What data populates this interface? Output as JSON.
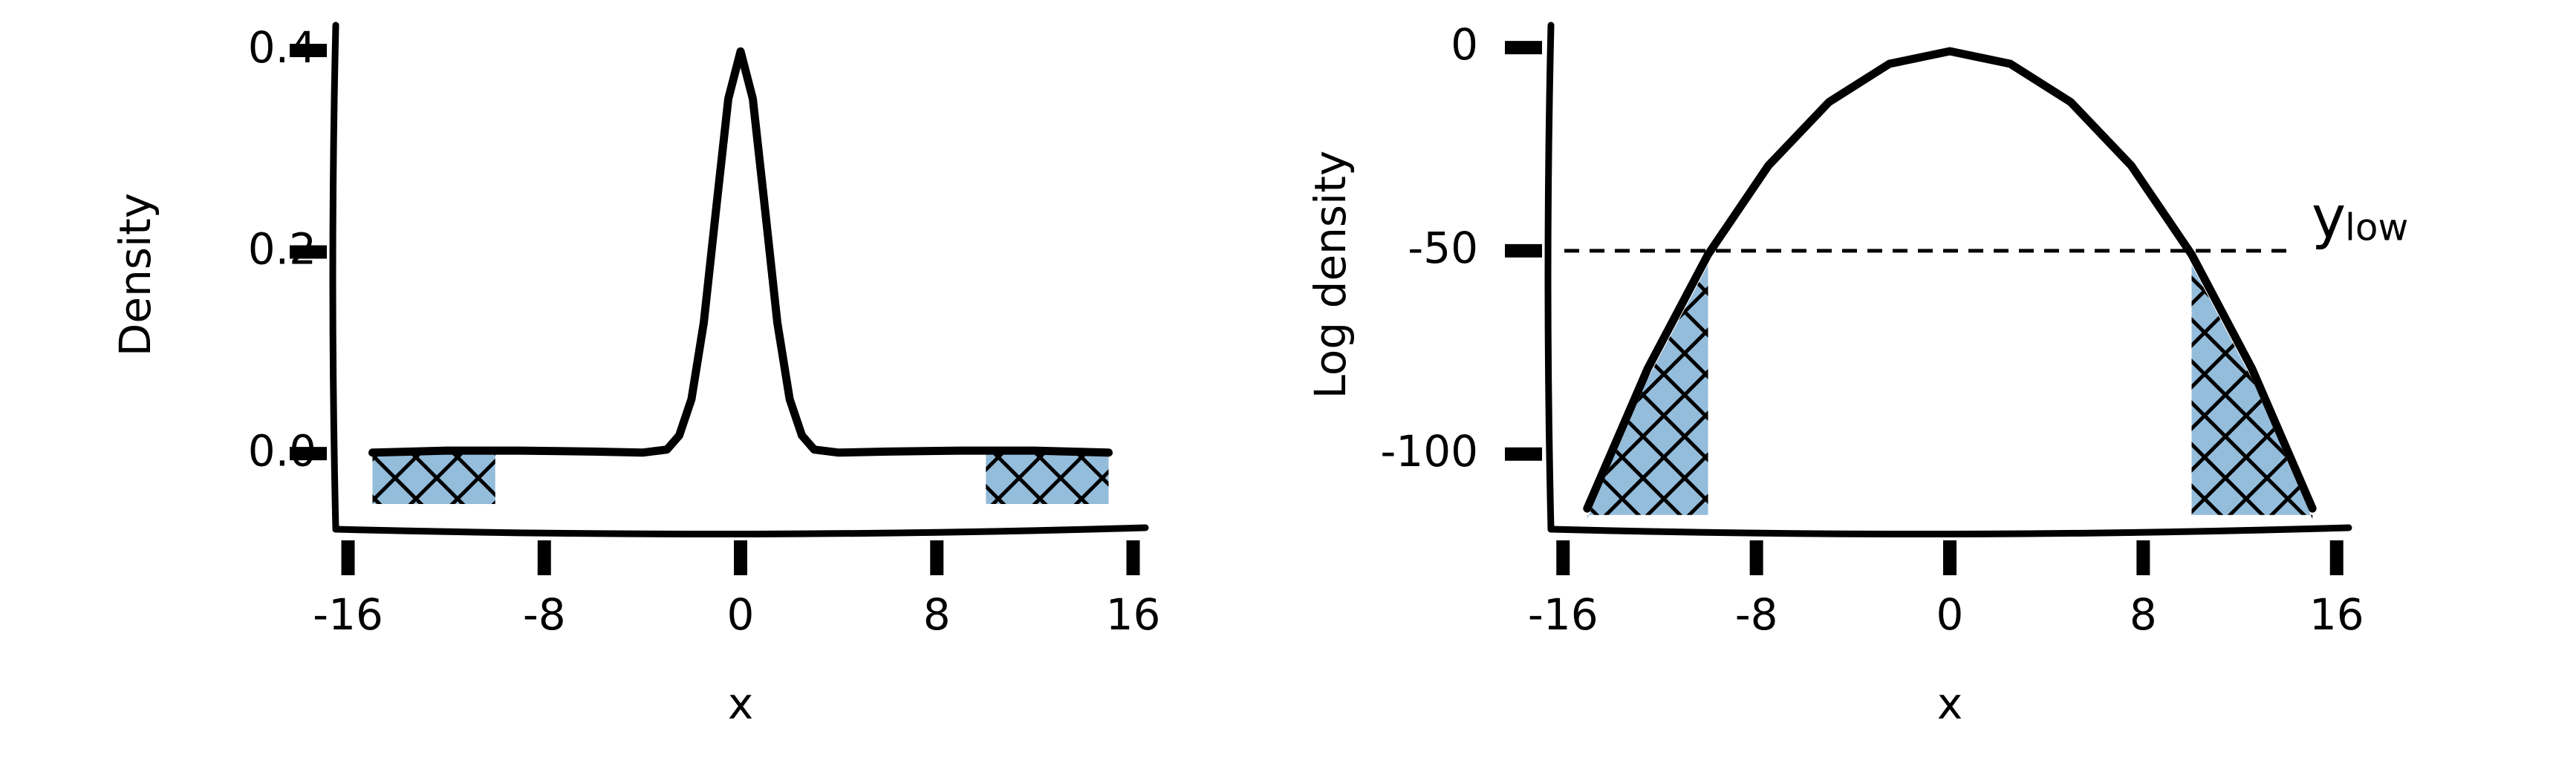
{
  "chart_data": [
    {
      "type": "line",
      "xlabel": "x",
      "ylabel": "Density",
      "x": [
        -15,
        -12,
        -9,
        -6,
        -4,
        -3,
        -2.5,
        -2,
        -1.5,
        -1,
        -0.5,
        0,
        0.5,
        1,
        1.5,
        2,
        2.5,
        3,
        4,
        6,
        9,
        12,
        15
      ],
      "series": [
        {
          "color": "#000000",
          "values": [
            0.001,
            0.003,
            0.003,
            0.002,
            0.001,
            0.004,
            0.018,
            0.054,
            0.13,
            0.242,
            0.352,
            0.399,
            0.352,
            0.242,
            0.13,
            0.054,
            0.018,
            0.004,
            0.001,
            0.002,
            0.003,
            0.003,
            0.001
          ]
        }
      ],
      "shaded": [
        [
          -15,
          -10
        ],
        [
          10,
          15
        ]
      ],
      "shade_top": 0,
      "shade_floor": -0.05,
      "shade_color": "#94bcdb",
      "xlim": [
        -16.5,
        16.5
      ],
      "ylim": [
        -0.075,
        0.425
      ],
      "xticks": [
        -16,
        -8,
        0,
        8,
        16
      ],
      "yticks": [
        {
          "value": 0,
          "label": "0.0"
        },
        {
          "value": 0.2,
          "label": "0.2"
        },
        {
          "value": 0.4,
          "label": "0.4"
        }
      ]
    },
    {
      "type": "line",
      "xlabel": "x",
      "ylabel": "Log density",
      "x": [
        -15,
        -12.5,
        -10,
        -7.5,
        -5,
        -2.5,
        0,
        2.5,
        5,
        7.5,
        10,
        12.5,
        15
      ],
      "series": [
        {
          "color": "#000000",
          "values": [
            -113.4,
            -79.0,
            -50.9,
            -29.0,
            -13.4,
            -4.0,
            -0.9,
            -4.0,
            -13.4,
            -29.0,
            -50.9,
            -79.0,
            -113.4
          ]
        }
      ],
      "threshold": {
        "value": -50,
        "label": "y",
        "subscript": "low"
      },
      "shaded": [
        [
          -15,
          -10
        ],
        [
          10,
          15
        ]
      ],
      "shade_floor": -115,
      "shade_color": "#94bcdb",
      "xlim": [
        -16.5,
        16.5
      ],
      "ylim": [
        -118.5,
        5.5
      ],
      "xticks": [
        -16,
        -8,
        0,
        8,
        16
      ],
      "yticks": [
        0,
        -50,
        -100
      ]
    }
  ]
}
